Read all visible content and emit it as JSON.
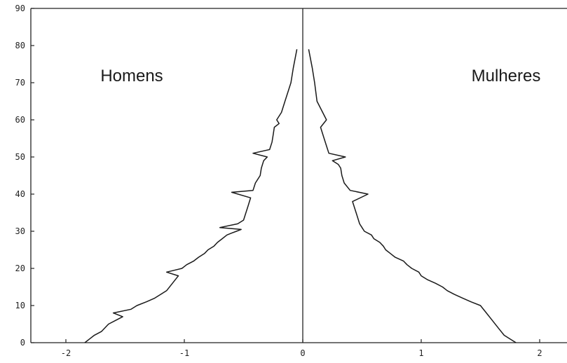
{
  "chart_data": {
    "type": "line",
    "title": "",
    "xlabel": "",
    "ylabel": "",
    "xlim": [
      -2.3,
      2.3
    ],
    "ylim": [
      0,
      90
    ],
    "x_ticks": [
      -2,
      -1,
      0,
      1,
      2
    ],
    "x_tick_labels": [
      "-2",
      "-1",
      "0",
      "1",
      "2"
    ],
    "y_ticks": [
      0,
      10,
      20,
      30,
      40,
      50,
      60,
      70,
      80,
      90
    ],
    "y_tick_labels": [
      "0",
      "10",
      "20",
      "30",
      "40",
      "50",
      "60",
      "70",
      "80",
      "90"
    ],
    "grid": false,
    "annotations": [
      "Homens",
      "Mulheres"
    ],
    "series": [
      {
        "x": [
          -1.84,
          -1.8,
          -1.76,
          -1.7,
          -1.64,
          -1.58,
          -1.52,
          -1.6,
          -1.45,
          -1.4,
          -1.32,
          -1.25,
          -1.2,
          -1.15,
          -1.1,
          -1.05,
          -1.15,
          -1.02,
          -0.98,
          -0.92,
          -0.88,
          -0.83,
          -0.8,
          -0.75,
          -0.72,
          -0.68,
          -0.64,
          -0.6,
          -0.56,
          -0.52,
          -0.7,
          -0.55,
          -0.5,
          -0.48,
          -0.46,
          -0.45,
          -0.44,
          -0.6,
          -0.42,
          -0.4,
          -0.36,
          -0.35,
          -0.33,
          -0.3,
          -0.42,
          -0.28,
          -0.26,
          -0.25,
          -0.24,
          -0.2,
          -0.22,
          -0.18,
          -0.15,
          -0.12,
          -0.1,
          -0.08,
          -0.05
        ],
        "y": [
          0,
          1,
          2,
          3,
          5,
          6,
          7,
          8,
          9,
          10,
          11,
          12,
          13,
          14,
          16,
          18,
          19,
          20,
          21,
          22,
          23,
          24,
          25,
          26,
          27,
          28,
          29,
          29.5,
          30,
          30.5,
          31,
          32,
          33,
          35,
          37,
          38,
          39,
          40.5,
          41,
          43,
          45,
          47,
          49,
          50,
          51,
          52,
          54,
          56,
          58,
          59,
          60,
          62,
          65,
          68,
          70,
          74,
          79
        ]
      },
      {
        "x": [
          1.8,
          1.75,
          1.7,
          1.65,
          1.6,
          1.55,
          1.5,
          1.42,
          1.35,
          1.28,
          1.22,
          1.18,
          1.12,
          1.05,
          1.0,
          0.98,
          0.92,
          0.88,
          0.85,
          0.78,
          0.74,
          0.7,
          0.68,
          0.65,
          0.6,
          0.58,
          0.52,
          0.5,
          0.48,
          0.45,
          0.42,
          0.55,
          0.4,
          0.35,
          0.33,
          0.32,
          0.3,
          0.25,
          0.36,
          0.22,
          0.2,
          0.18,
          0.15,
          0.2,
          0.12,
          0.1,
          0.08,
          0.05
        ],
        "y": [
          0,
          1,
          2,
          4,
          6,
          8,
          10,
          11,
          12,
          13,
          14,
          15,
          16,
          17,
          18,
          19,
          20,
          21,
          22,
          23,
          24,
          25,
          26,
          27,
          28,
          29,
          30,
          31,
          32,
          35,
          38,
          40,
          41,
          43,
          45,
          47,
          48,
          49,
          50,
          51,
          53,
          55,
          58,
          60,
          65,
          70,
          74,
          79
        ]
      }
    ]
  }
}
